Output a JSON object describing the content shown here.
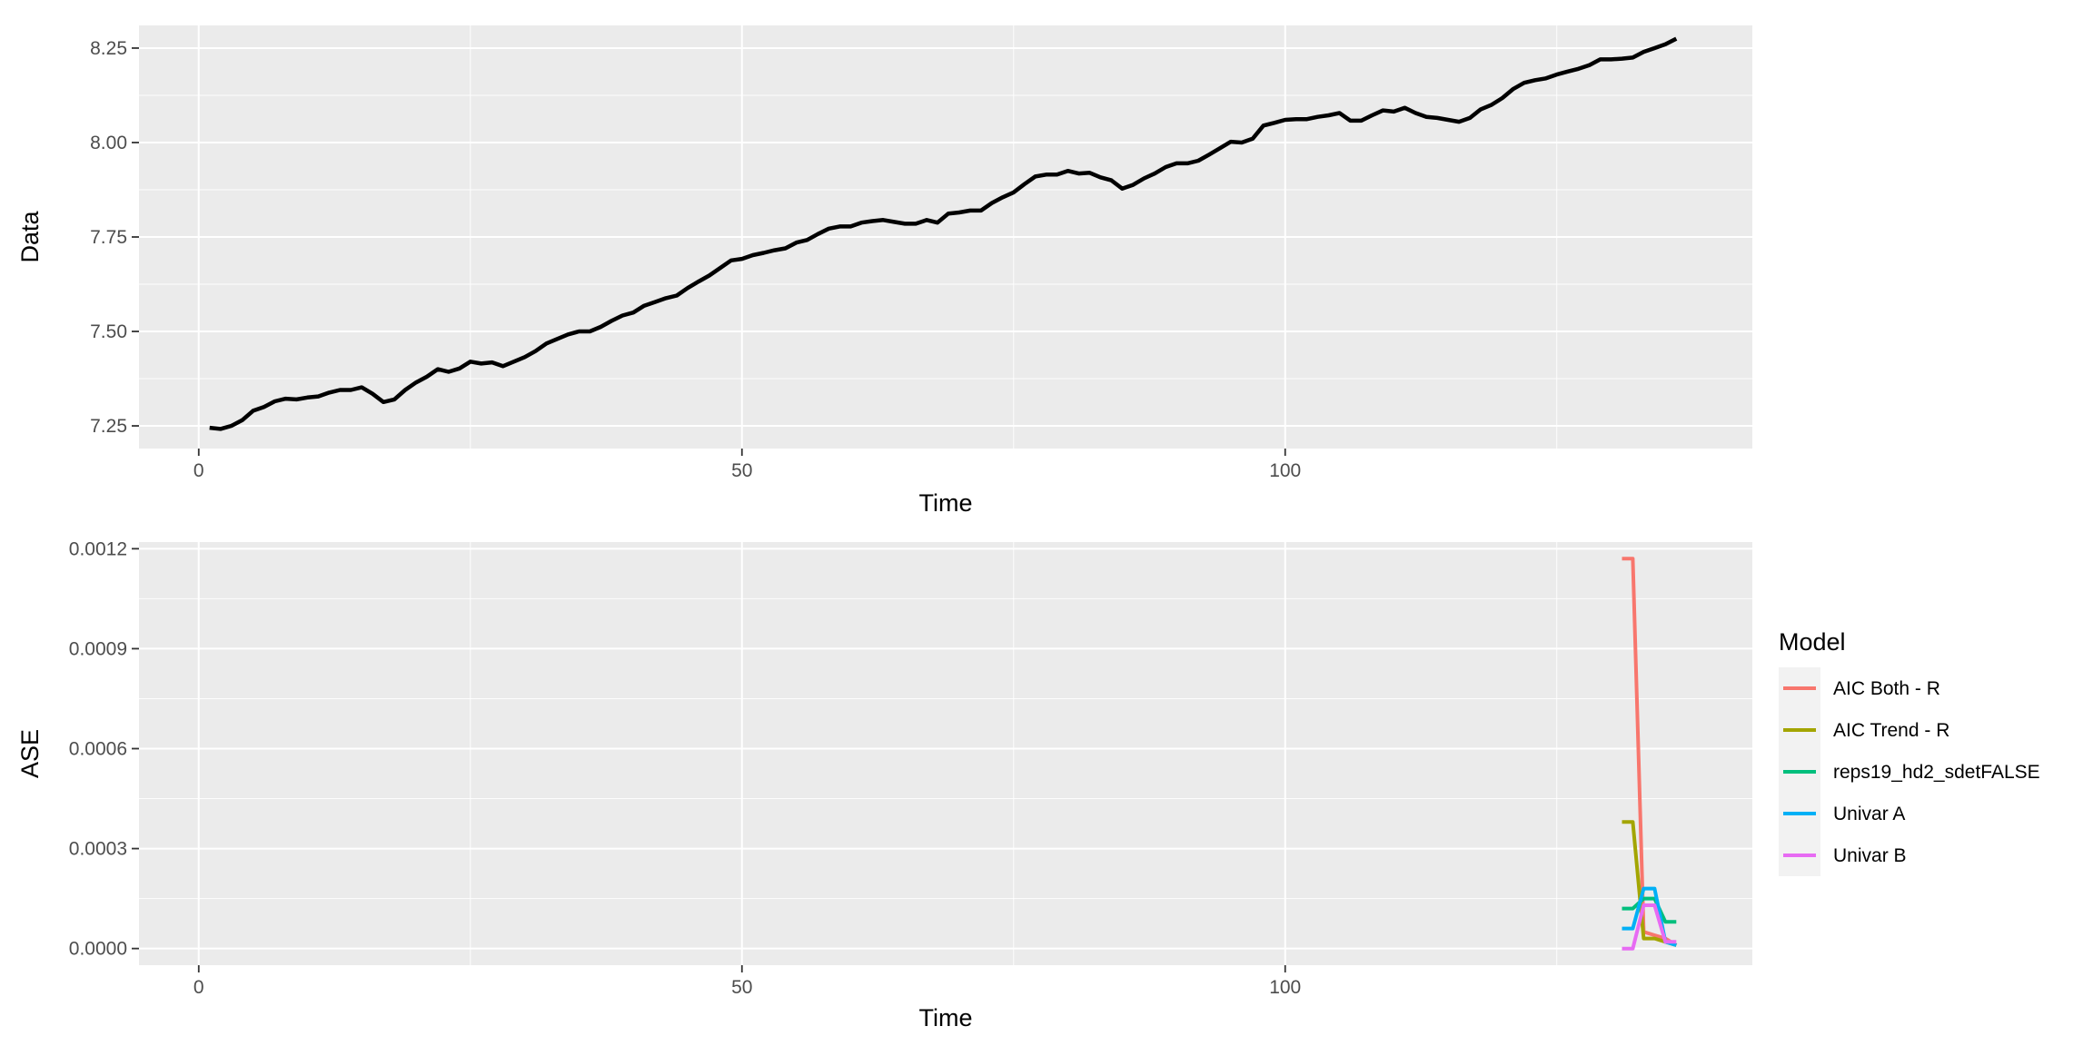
{
  "chart_data": [
    {
      "type": "line",
      "xlabel": "Time",
      "ylabel": "Data",
      "xlim": [
        -5.5,
        143
      ],
      "ylim": [
        7.19,
        8.31
      ],
      "x_ticks": [
        0,
        50,
        100
      ],
      "x_tick_labels": [
        "0",
        "50",
        "100"
      ],
      "y_ticks": [
        7.25,
        7.5,
        7.75,
        8.0,
        8.25
      ],
      "y_tick_labels": [
        "7.25",
        "7.50",
        "7.75",
        "8.00",
        "8.25"
      ],
      "grid": true,
      "series": [
        {
          "color": "#000000",
          "x": [
            1,
            2,
            3,
            4,
            5,
            6,
            7,
            8,
            9,
            10,
            11,
            12,
            13,
            14,
            15,
            16,
            17,
            18,
            19,
            20,
            21,
            22,
            23,
            24,
            25,
            26,
            27,
            28,
            29,
            30,
            31,
            32,
            33,
            34,
            35,
            36,
            37,
            38,
            39,
            40,
            41,
            42,
            43,
            44,
            45,
            46,
            47,
            48,
            49,
            50,
            51,
            52,
            53,
            54,
            55,
            56,
            57,
            58,
            59,
            60,
            61,
            62,
            63,
            64,
            65,
            66,
            67,
            68,
            69,
            70,
            71,
            72,
            73,
            74,
            75,
            76,
            77,
            78,
            79,
            80,
            81,
            82,
            83,
            84,
            85,
            86,
            87,
            88,
            89,
            90,
            91,
            92,
            93,
            94,
            95,
            96,
            97,
            98,
            99,
            100,
            101,
            102,
            103,
            104,
            105,
            106,
            107,
            108,
            109,
            110,
            111,
            112,
            113,
            114,
            115,
            116,
            117,
            118,
            119,
            120,
            121,
            122,
            123,
            124,
            125,
            126,
            127,
            128,
            129,
            130,
            131,
            132,
            133,
            134,
            135,
            136
          ],
          "values": [
            7.245,
            7.242,
            7.25,
            7.265,
            7.29,
            7.3,
            7.315,
            7.322,
            7.32,
            7.325,
            7.328,
            7.338,
            7.345,
            7.345,
            7.352,
            7.335,
            7.313,
            7.32,
            7.345,
            7.365,
            7.38,
            7.4,
            7.393,
            7.402,
            7.42,
            7.415,
            7.418,
            7.408,
            7.42,
            7.432,
            7.448,
            7.468,
            7.48,
            7.492,
            7.5,
            7.5,
            7.512,
            7.528,
            7.542,
            7.55,
            7.568,
            7.578,
            7.588,
            7.595,
            7.615,
            7.632,
            7.648,
            7.668,
            7.688,
            7.692,
            7.702,
            7.708,
            7.715,
            7.72,
            7.735,
            7.742,
            7.758,
            7.772,
            7.778,
            7.778,
            7.788,
            7.792,
            7.795,
            7.79,
            7.785,
            7.785,
            7.795,
            7.788,
            7.812,
            7.815,
            7.82,
            7.82,
            7.84,
            7.855,
            7.868,
            7.89,
            7.91,
            7.915,
            7.915,
            7.925,
            7.918,
            7.92,
            7.908,
            7.9,
            7.878,
            7.888,
            7.905,
            7.918,
            7.935,
            7.945,
            7.945,
            7.952,
            7.968,
            7.985,
            8.002,
            8.0,
            8.01,
            8.045,
            8.052,
            8.06,
            8.062,
            8.062,
            8.068,
            8.072,
            8.078,
            8.058,
            8.058,
            8.072,
            8.085,
            8.082,
            8.092,
            8.078,
            8.068,
            8.065,
            8.06,
            8.055,
            8.065,
            8.088,
            8.1,
            8.118,
            8.142,
            8.158,
            8.165,
            8.17,
            8.18,
            8.188,
            8.195,
            8.205,
            8.22,
            8.22,
            8.222,
            8.225,
            8.24,
            8.25,
            8.26,
            8.275
          ]
        }
      ]
    },
    {
      "type": "line",
      "xlabel": "Time",
      "ylabel": "ASE",
      "xlim": [
        -5.5,
        143
      ],
      "ylim": [
        -5e-05,
        0.00122
      ],
      "x_ticks": [
        0,
        50,
        100
      ],
      "x_tick_labels": [
        "0",
        "50",
        "100"
      ],
      "y_ticks": [
        0,
        0.0003,
        0.0006,
        0.0009,
        0.0012
      ],
      "y_tick_labels": [
        "0.0000",
        "0.0003",
        "0.0006",
        "0.0009",
        "0.0012"
      ],
      "grid": true,
      "legend": {
        "title": "Model",
        "position": "right",
        "entries": [
          "AIC Both - R",
          "AIC Trend - R",
          "reps19_hd2_sdetFALSE",
          "Univar A",
          "Univar B"
        ]
      },
      "series": [
        {
          "name": "AIC Both - R",
          "color": "#F8766D",
          "x": [
            131,
            132,
            133,
            134,
            135,
            136
          ],
          "values": [
            0.00117,
            0.00117,
            5e-05,
            4e-05,
            3e-05,
            1e-05
          ]
        },
        {
          "name": "AIC Trend - R",
          "color": "#A3A500",
          "x": [
            131,
            132,
            133,
            134,
            135,
            136
          ],
          "values": [
            0.00038,
            0.00038,
            3e-05,
            3e-05,
            2e-05,
            1e-05
          ]
        },
        {
          "name": "reps19_hd2_sdetFALSE",
          "color": "#00BF7D",
          "x": [
            131,
            132,
            133,
            134,
            135,
            136
          ],
          "values": [
            0.00012,
            0.00012,
            0.00015,
            0.00015,
            8e-05,
            8e-05
          ]
        },
        {
          "name": "Univar A",
          "color": "#00B0F6",
          "x": [
            131,
            132,
            133,
            134,
            135,
            136
          ],
          "values": [
            6e-05,
            6e-05,
            0.00018,
            0.00018,
            2e-05,
            1e-05
          ]
        },
        {
          "name": "Univar B",
          "color": "#E76BF3",
          "x": [
            131,
            132,
            133,
            134,
            135,
            136
          ],
          "values": [
            0.0,
            0.0,
            0.00013,
            0.00013,
            2e-05,
            2e-05
          ]
        }
      ]
    }
  ]
}
